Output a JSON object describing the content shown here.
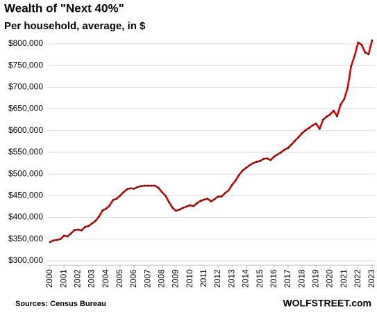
{
  "chart_data": {
    "type": "line",
    "title": "Wealth of \"Next 40%\"",
    "subtitle": "Per household, average, in $",
    "source": "Sources: Census Bureau",
    "brand": "WOLFSTREET.com",
    "x": [
      2000,
      2000.25,
      2000.5,
      2000.75,
      2001,
      2001.25,
      2001.5,
      2001.75,
      2002,
      2002.25,
      2002.5,
      2002.75,
      2003,
      2003.25,
      2003.5,
      2003.75,
      2004,
      2004.25,
      2004.5,
      2004.75,
      2005,
      2005.25,
      2005.5,
      2005.75,
      2006,
      2006.25,
      2006.5,
      2006.75,
      2007,
      2007.25,
      2007.5,
      2007.75,
      2008,
      2008.25,
      2008.5,
      2008.75,
      2009,
      2009.25,
      2009.5,
      2009.75,
      2010,
      2010.25,
      2010.5,
      2010.75,
      2011,
      2011.25,
      2011.5,
      2011.75,
      2012,
      2012.25,
      2012.5,
      2012.75,
      2013,
      2013.25,
      2013.5,
      2013.75,
      2014,
      2014.25,
      2014.5,
      2014.75,
      2015,
      2015.25,
      2015.5,
      2015.75,
      2016,
      2016.25,
      2016.5,
      2016.75,
      2017,
      2017.25,
      2017.5,
      2017.75,
      2018,
      2018.25,
      2018.5,
      2018.75,
      2019,
      2019.25,
      2019.5,
      2019.75,
      2020,
      2020.25,
      2020.5,
      2020.75,
      2021,
      2021.25,
      2021.5,
      2021.75,
      2022,
      2022.25,
      2022.5,
      2022.75,
      2023
    ],
    "series": [
      {
        "name": "Next 40%",
        "color": "#e00000",
        "marker_color": "#222222",
        "values": [
          343000,
          347000,
          348000,
          350000,
          358000,
          356000,
          363000,
          371000,
          372000,
          370000,
          378000,
          380000,
          386000,
          392000,
          402000,
          416000,
          420000,
          427000,
          440000,
          443000,
          450000,
          458000,
          465000,
          467000,
          466000,
          470000,
          472000,
          473000,
          473000,
          473000,
          473000,
          468000,
          458000,
          450000,
          435000,
          422000,
          415000,
          418000,
          422000,
          425000,
          428000,
          426000,
          433000,
          438000,
          441000,
          443000,
          437000,
          442000,
          448000,
          448000,
          456000,
          462000,
          475000,
          485000,
          498000,
          508000,
          514000,
          520000,
          525000,
          528000,
          530000,
          535000,
          536000,
          532000,
          540000,
          545000,
          550000,
          556000,
          560000,
          568000,
          577000,
          585000,
          594000,
          601000,
          606000,
          612000,
          616000,
          604000,
          625000,
          632000,
          637000,
          646000,
          633000,
          660000,
          672000,
          698000,
          748000,
          772000,
          803000,
          798000,
          780000,
          776000,
          808000
        ]
      }
    ],
    "xlim": [
      1999.8,
      2023.2
    ],
    "xticks": [
      2000,
      2001,
      2002,
      2003,
      2004,
      2005,
      2006,
      2007,
      2008,
      2009,
      2010,
      2011,
      2012,
      2013,
      2014,
      2015,
      2016,
      2017,
      2018,
      2019,
      2020,
      2021,
      2022,
      2023
    ],
    "ylim": [
      290000,
      815000
    ],
    "yticks": [
      {
        "value": 300000,
        "label": "$300,000"
      },
      {
        "value": 350000,
        "label": "$350,000"
      },
      {
        "value": 400000,
        "label": "$400,000"
      },
      {
        "value": 450000,
        "label": "$450,000"
      },
      {
        "value": 500000,
        "label": "$500,000"
      },
      {
        "value": 550000,
        "label": "$550,000"
      },
      {
        "value": 600000,
        "label": "$600,000"
      },
      {
        "value": 650000,
        "label": "$650,000"
      },
      {
        "value": 700000,
        "label": "$700,000"
      },
      {
        "value": 750000,
        "label": "$750,000"
      },
      {
        "value": 800000,
        "label": "$800,000"
      }
    ],
    "grid": true
  }
}
